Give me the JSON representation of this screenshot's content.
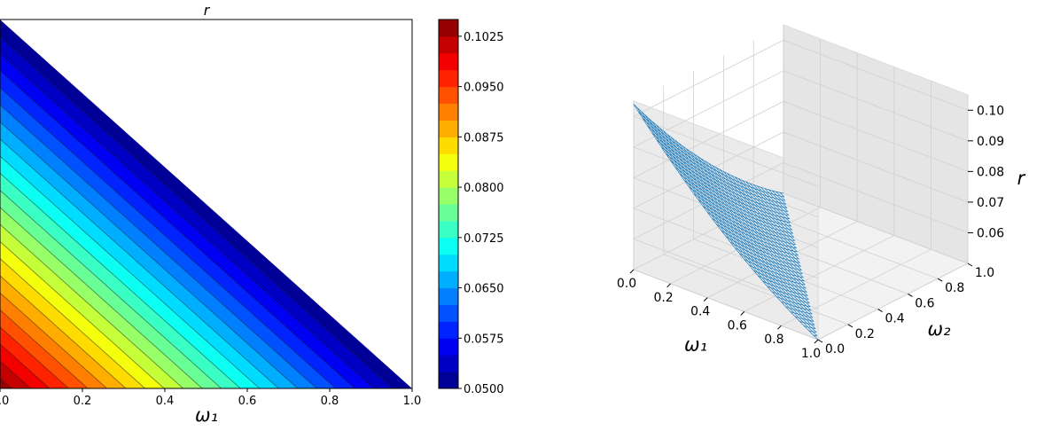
{
  "chart_data": [
    {
      "type": "filled-contour",
      "title": "r",
      "xlabel": "ω₁",
      "ylabel": "",
      "xlim": [
        0.0,
        1.0
      ],
      "ylim": [
        0.0,
        1.0
      ],
      "xticks": [
        "0.0",
        "0.2",
        "0.4",
        "0.6",
        "0.8",
        "1.0"
      ],
      "domain": "triangle: ω₁ + ω₂ ≤ 1",
      "colormap": "jet",
      "levels": [
        0.05,
        0.0525,
        0.055,
        0.0575,
        0.06,
        0.0625,
        0.065,
        0.0675,
        0.07,
        0.0725,
        0.075,
        0.0775,
        0.08,
        0.0825,
        0.085,
        0.0875,
        0.09,
        0.0925,
        0.095,
        0.0975,
        0.1,
        0.1025,
        0.105
      ],
      "r_at_corners": {
        "origin": 0.104,
        "w1_1_w2_0": 0.05,
        "w1_0_w2_1": 0.05
      },
      "grid": false
    },
    {
      "type": "colorbar",
      "range": [
        0.05,
        0.105
      ],
      "ticks": [
        "0.0500",
        "0.0575",
        "0.0650",
        "0.0725",
        "0.0800",
        "0.0875",
        "0.0950",
        "0.1025"
      ],
      "colormap": "jet"
    },
    {
      "type": "surface3d",
      "xlabel": "ω₁",
      "ylabel": "ω₂",
      "zlabel": "r",
      "xticks": [
        "0.0",
        "0.2",
        "0.4",
        "0.6",
        "0.8",
        "1.0"
      ],
      "yticks": [
        "0.0",
        "0.2",
        "0.4",
        "0.6",
        "0.8",
        "1.0"
      ],
      "zticks": [
        "0.06",
        "0.07",
        "0.08",
        "0.09",
        "0.10"
      ],
      "zlim": [
        0.05,
        0.105
      ],
      "surface_color": "#1f77b4",
      "corner_values": {
        "w1_0_w2_0": 0.104,
        "w1_1_w2_0": 0.05,
        "w1_0_w2_1": 0.05
      },
      "grid": true
    }
  ]
}
